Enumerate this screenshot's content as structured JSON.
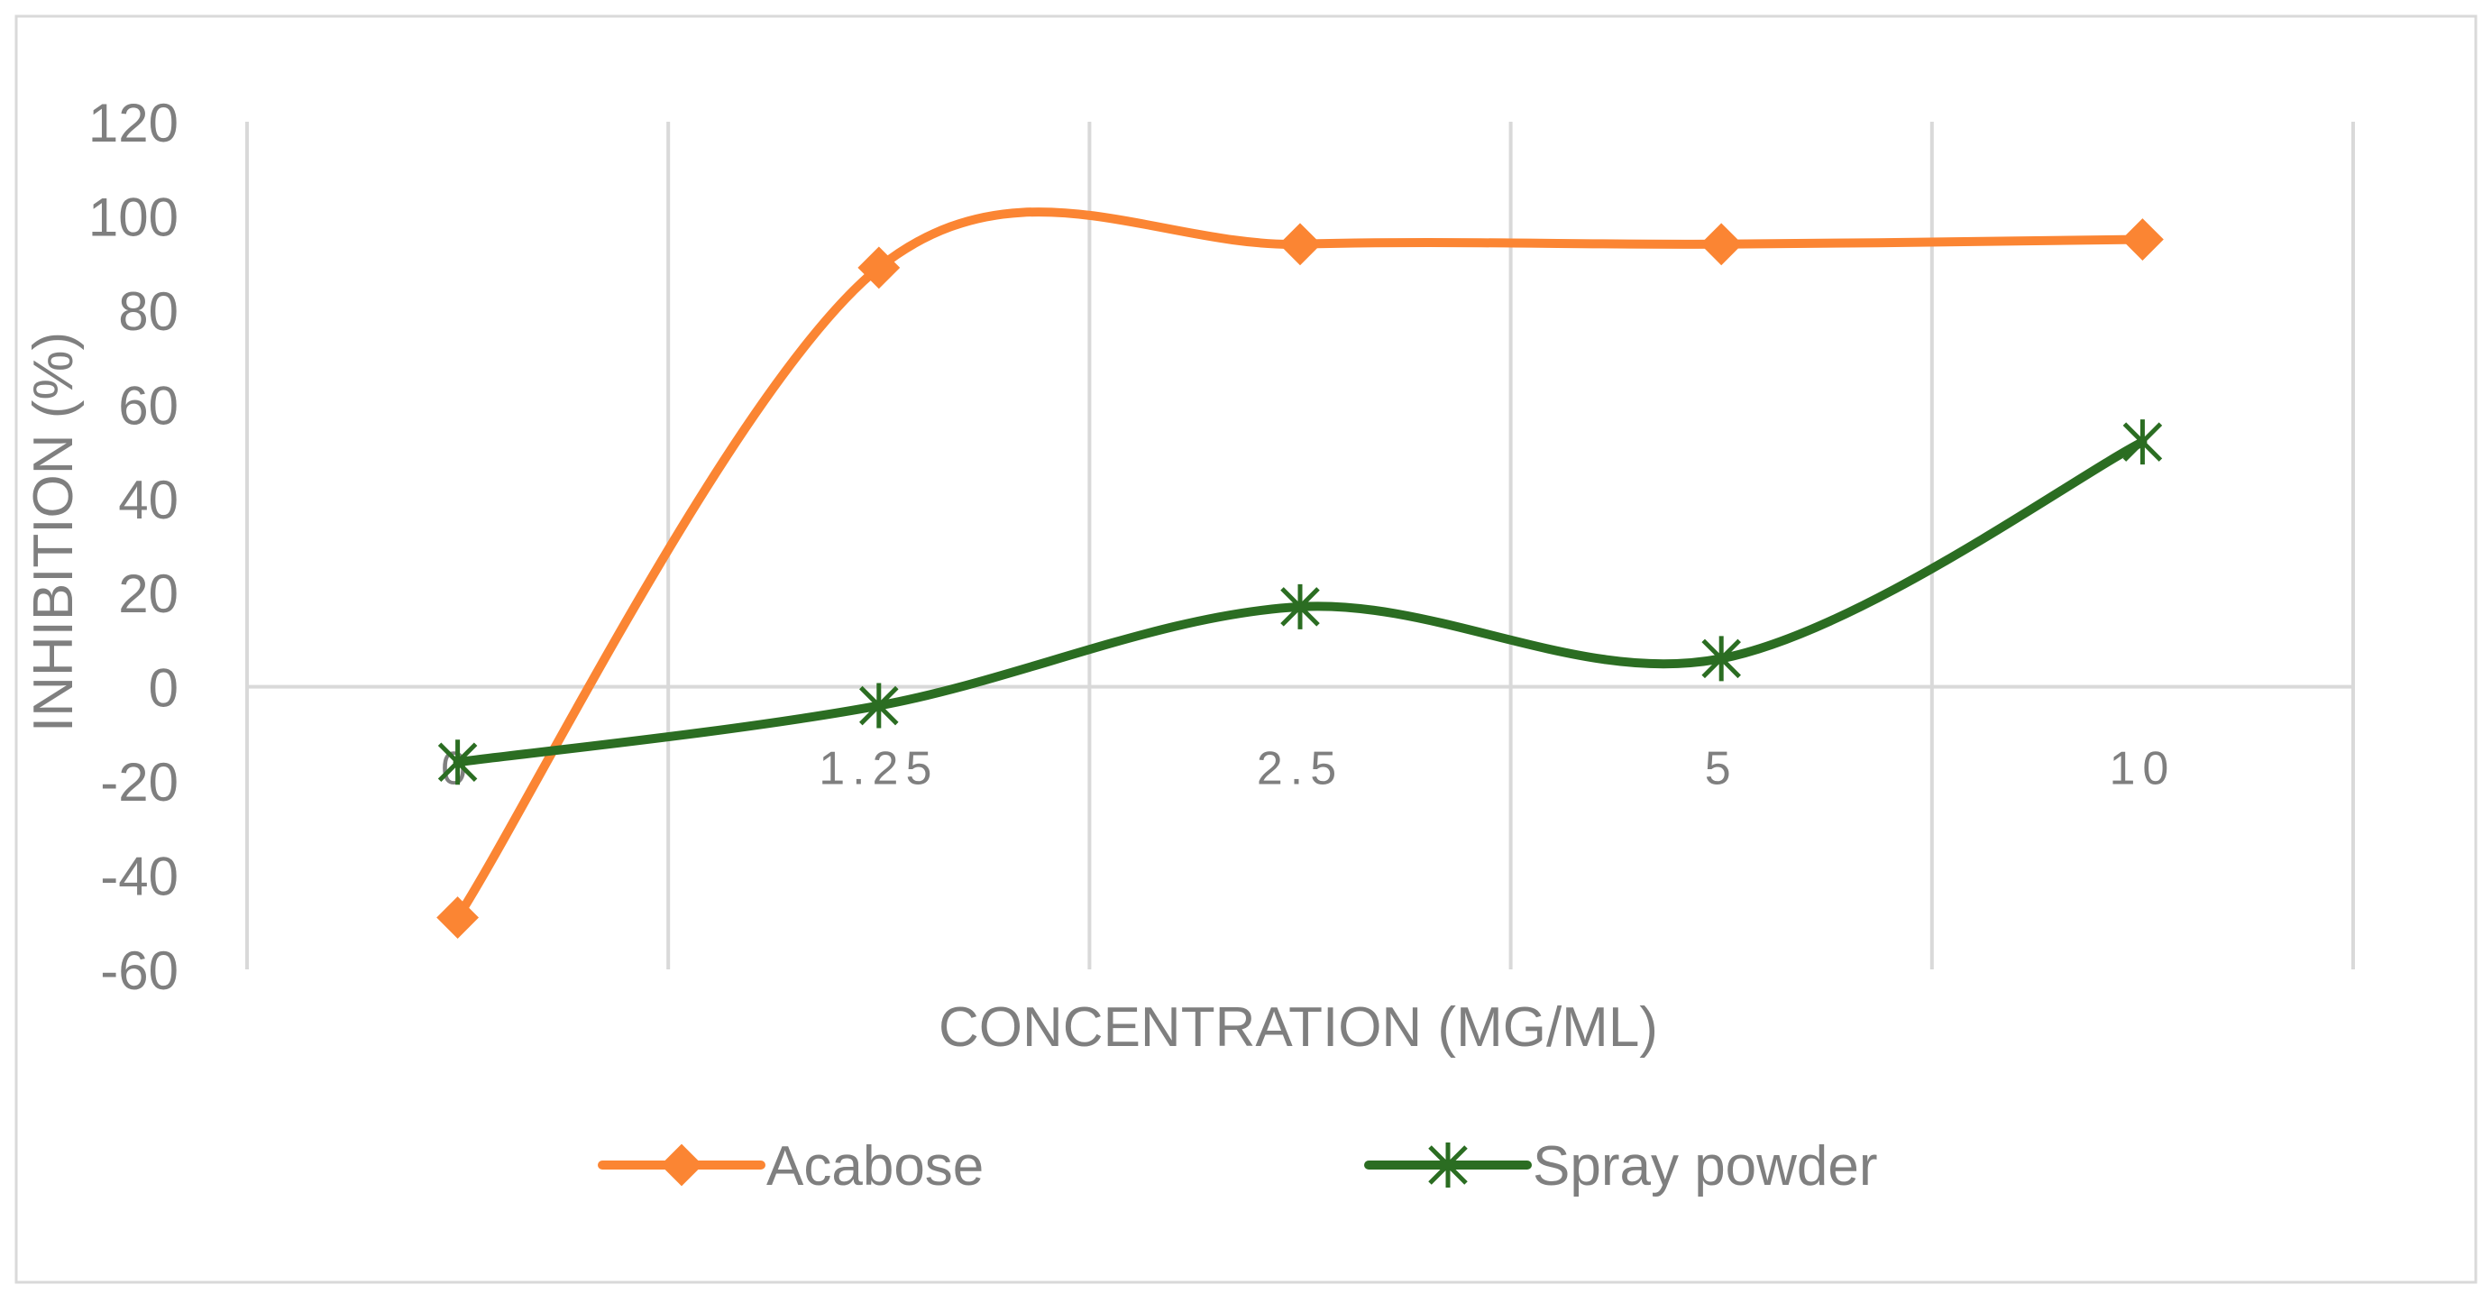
{
  "chart_data": {
    "type": "line",
    "title": "",
    "xlabel": "CONCENTRATION (MG/ML)",
    "ylabel": "INHIBITION (%)",
    "categories": [
      "0",
      "1.25",
      "2.5",
      "5",
      "10"
    ],
    "ylim": [
      -60,
      120
    ],
    "yticks": [
      "120",
      "100",
      "80",
      "60",
      "40",
      "20",
      "0",
      "-20",
      "-40",
      "-60"
    ],
    "grid": "vertical",
    "smoothed": true,
    "legend_position": "bottom",
    "series": [
      {
        "name": "Acabose",
        "values": [
          -49,
          89,
          94,
          94,
          95
        ],
        "color": "#fb8533",
        "marker": "diamond"
      },
      {
        "name": "Spray powder",
        "values": [
          -16,
          -4,
          17,
          6,
          52
        ],
        "color": "#2b6d22",
        "marker": "star"
      }
    ]
  }
}
